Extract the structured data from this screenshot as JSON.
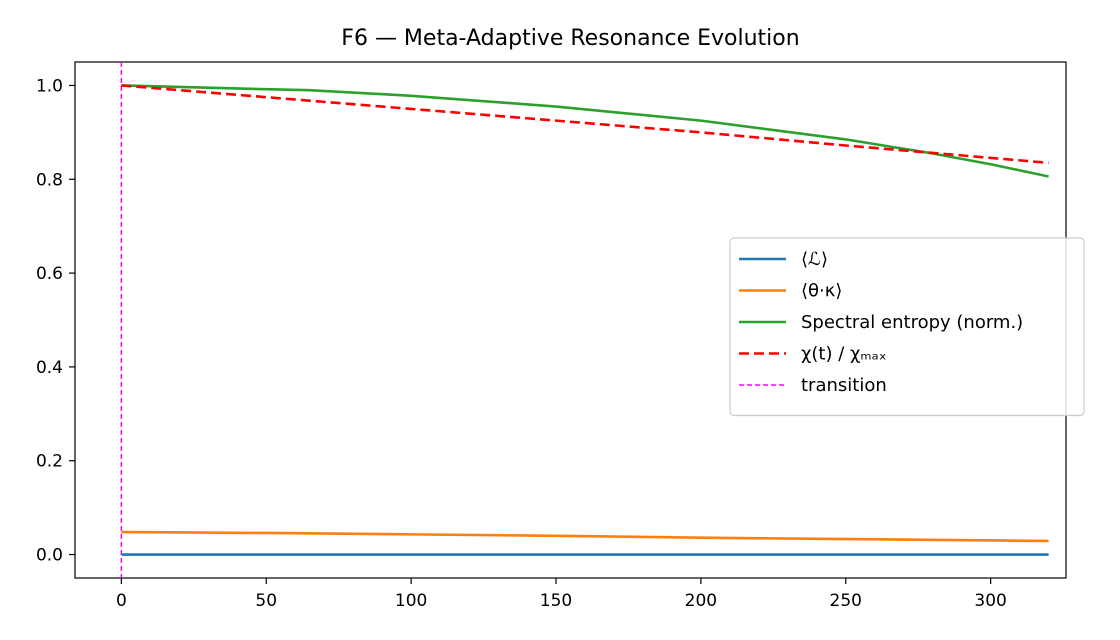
{
  "chart_data": {
    "type": "line",
    "title": "F6 — Meta-Adaptive Resonance Evolution",
    "xlabel": "",
    "ylabel": "",
    "xlim": [
      -16,
      326
    ],
    "ylim": [
      -0.05,
      1.05
    ],
    "x_ticks": [
      0,
      50,
      100,
      150,
      200,
      250,
      300
    ],
    "x_tick_labels": [
      "0",
      "50",
      "100",
      "150",
      "200",
      "250",
      "300"
    ],
    "y_ticks": [
      0.0,
      0.2,
      0.4,
      0.6,
      0.8,
      1.0
    ],
    "y_tick_labels": [
      "0.0",
      "0.2",
      "0.4",
      "0.6",
      "0.8",
      "1.0"
    ],
    "grid": false,
    "legend_position": "center-right",
    "series": [
      {
        "name": "⟨ℒ⟩",
        "color": "#1f77b4",
        "style": "solid",
        "x": [
          0,
          320
        ],
        "y": [
          0.0,
          0.0
        ]
      },
      {
        "name": "⟨θ·κ⟩",
        "color": "#ff7f0e",
        "style": "solid",
        "x": [
          0,
          50,
          100,
          150,
          200,
          250,
          320
        ],
        "y": [
          0.048,
          0.046,
          0.043,
          0.04,
          0.036,
          0.033,
          0.029
        ]
      },
      {
        "name": "Spectral entropy (norm.)",
        "color": "#2ca02c",
        "style": "solid",
        "x": [
          0,
          25,
          50,
          65,
          100,
          150,
          200,
          250,
          280,
          300,
          320
        ],
        "y": [
          1.0,
          0.996,
          0.992,
          0.99,
          0.978,
          0.955,
          0.925,
          0.885,
          0.855,
          0.832,
          0.806
        ]
      },
      {
        "name": "χ(t) / χₘₐₓ",
        "color": "#ff0000",
        "style": "dashed",
        "x": [
          0,
          50,
          100,
          150,
          200,
          250,
          320
        ],
        "y": [
          1.0,
          0.975,
          0.95,
          0.925,
          0.9,
          0.872,
          0.835
        ]
      }
    ],
    "vlines": [
      {
        "name": "transition",
        "x": 0,
        "color": "#ff00ff",
        "style": "dashed"
      }
    ]
  }
}
